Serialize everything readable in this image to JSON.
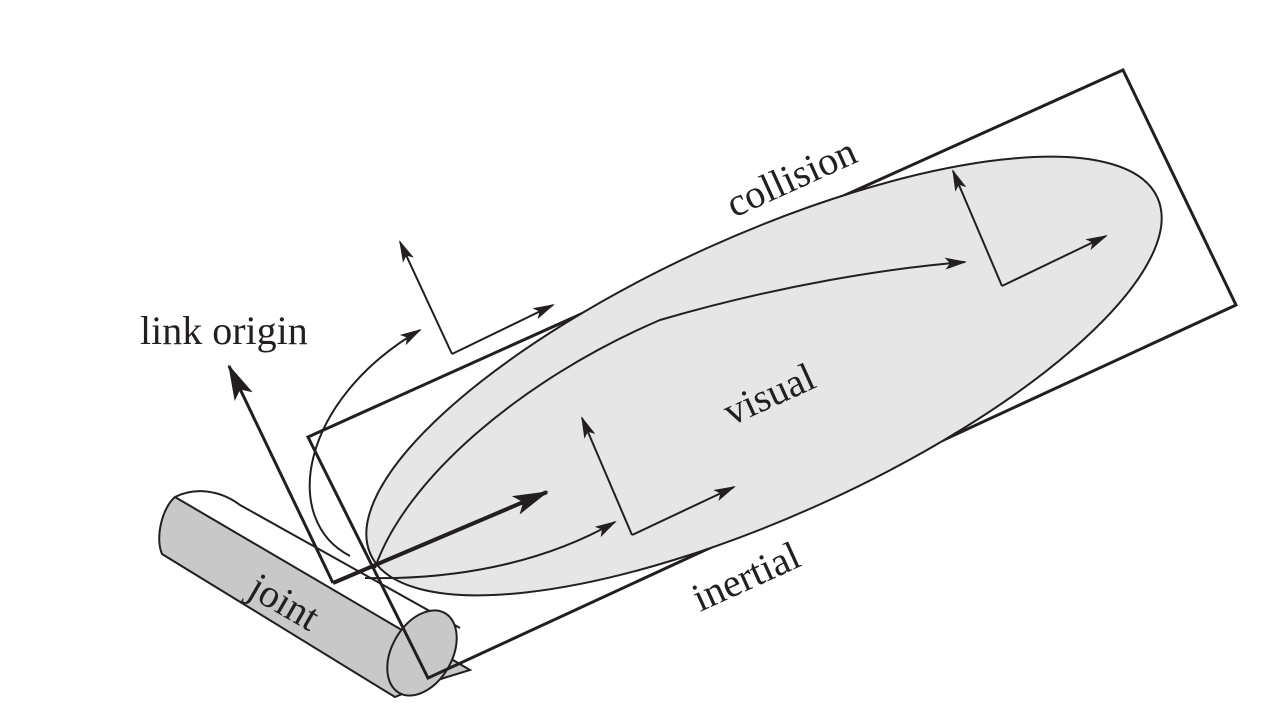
{
  "labels": {
    "link_origin": "link origin",
    "collision": "collision",
    "visual": "visual",
    "inertial": "inertial",
    "joint": "joint"
  },
  "colors": {
    "stroke": "#231f20",
    "ellipse_fill": "#e6e6e6",
    "cylinder_fill": "#c8c8c8",
    "background": "#ffffff"
  }
}
